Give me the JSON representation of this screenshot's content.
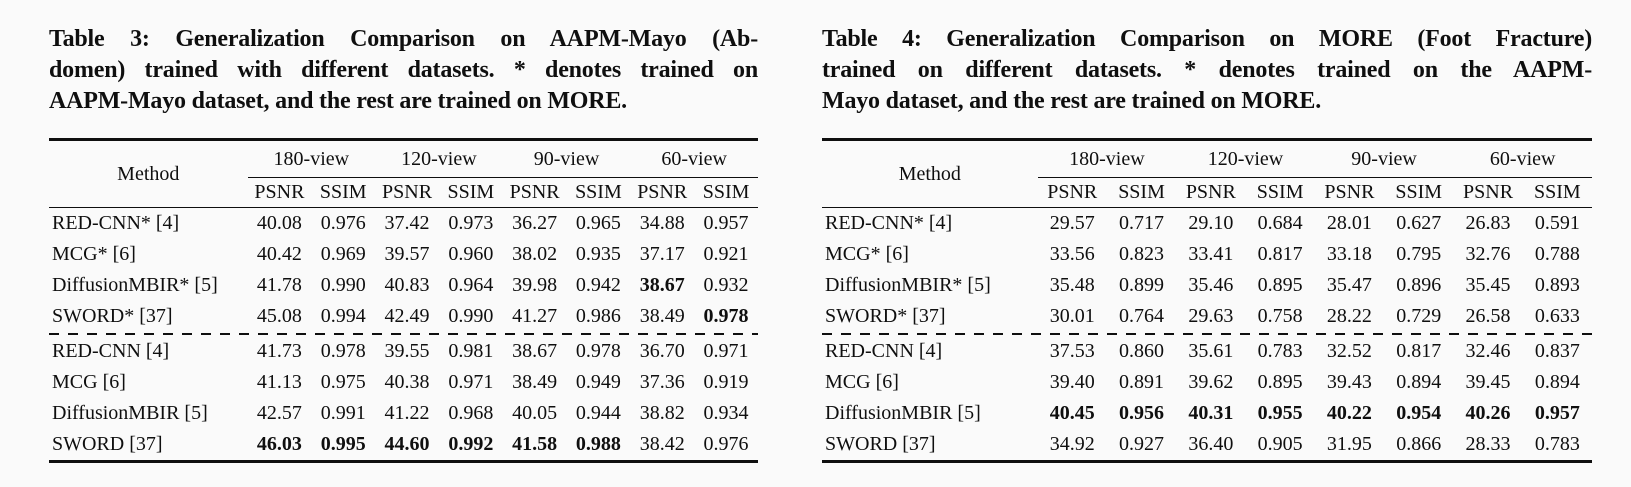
{
  "page": {
    "background": "#fafafa",
    "text_color": "#0f0f0f",
    "rule_color": "#0f0f0f"
  },
  "tables": [
    {
      "id": "table-3",
      "caption_lines": [
        "Table 3: Generalization Comparison on AAPM-Mayo (Ab-",
        "domen) trained with different datasets. * denotes trained on",
        "AAPM-Mayo dataset, and the rest are trained on MORE."
      ],
      "header": {
        "method": "Method",
        "groups": [
          "180-view",
          "120-view",
          "90-view",
          "60-view"
        ],
        "metrics": [
          "PSNR",
          "SSIM"
        ]
      },
      "rows": [
        {
          "method": "RED-CNN* [4]",
          "values": [
            "40.08",
            "0.976",
            "37.42",
            "0.973",
            "36.27",
            "0.965",
            "34.88",
            "0.957"
          ],
          "bold": []
        },
        {
          "method": "MCG* [6]",
          "values": [
            "40.42",
            "0.969",
            "39.57",
            "0.960",
            "38.02",
            "0.935",
            "37.17",
            "0.921"
          ],
          "bold": []
        },
        {
          "method": "DiffusionMBIR* [5]",
          "values": [
            "41.78",
            "0.990",
            "40.83",
            "0.964",
            "39.98",
            "0.942",
            "38.67",
            "0.932"
          ],
          "bold": [
            6
          ]
        },
        {
          "method": "SWORD* [37]",
          "values": [
            "45.08",
            "0.994",
            "42.49",
            "0.990",
            "41.27",
            "0.986",
            "38.49",
            "0.978"
          ],
          "bold": [
            7
          ],
          "dashed_after": true
        },
        {
          "method": "RED-CNN [4]",
          "values": [
            "41.73",
            "0.978",
            "39.55",
            "0.981",
            "38.67",
            "0.978",
            "36.70",
            "0.971"
          ],
          "bold": []
        },
        {
          "method": "MCG [6]",
          "values": [
            "41.13",
            "0.975",
            "40.38",
            "0.971",
            "38.49",
            "0.949",
            "37.36",
            "0.919"
          ],
          "bold": []
        },
        {
          "method": "DiffusionMBIR [5]",
          "values": [
            "42.57",
            "0.991",
            "41.22",
            "0.968",
            "40.05",
            "0.944",
            "38.82",
            "0.934"
          ],
          "bold": []
        },
        {
          "method": "SWORD [37]",
          "values": [
            "46.03",
            "0.995",
            "44.60",
            "0.992",
            "41.58",
            "0.988",
            "38.42",
            "0.976"
          ],
          "bold": [
            0,
            1,
            2,
            3,
            4,
            5
          ]
        }
      ]
    },
    {
      "id": "table-4",
      "caption_lines": [
        "Table 4: Generalization Comparison on MORE (Foot Fracture)",
        "trained on different datasets. * denotes trained on the AAPM-",
        "Mayo dataset, and the rest are trained on MORE."
      ],
      "header": {
        "method": "Method",
        "groups": [
          "180-view",
          "120-view",
          "90-view",
          "60-view"
        ],
        "metrics": [
          "PSNR",
          "SSIM"
        ]
      },
      "rows": [
        {
          "method": "RED-CNN* [4]",
          "values": [
            "29.57",
            "0.717",
            "29.10",
            "0.684",
            "28.01",
            "0.627",
            "26.83",
            "0.591"
          ],
          "bold": []
        },
        {
          "method": "MCG* [6]",
          "values": [
            "33.56",
            "0.823",
            "33.41",
            "0.817",
            "33.18",
            "0.795",
            "32.76",
            "0.788"
          ],
          "bold": []
        },
        {
          "method": "DiffusionMBIR* [5]",
          "values": [
            "35.48",
            "0.899",
            "35.46",
            "0.895",
            "35.47",
            "0.896",
            "35.45",
            "0.893"
          ],
          "bold": []
        },
        {
          "method": "SWORD* [37]",
          "values": [
            "30.01",
            "0.764",
            "29.63",
            "0.758",
            "28.22",
            "0.729",
            "26.58",
            "0.633"
          ],
          "bold": [],
          "dashed_after": true
        },
        {
          "method": "RED-CNN [4]",
          "values": [
            "37.53",
            "0.860",
            "35.61",
            "0.783",
            "32.52",
            "0.817",
            "32.46",
            "0.837"
          ],
          "bold": []
        },
        {
          "method": "MCG [6]",
          "values": [
            "39.40",
            "0.891",
            "39.62",
            "0.895",
            "39.43",
            "0.894",
            "39.45",
            "0.894"
          ],
          "bold": []
        },
        {
          "method": "DiffusionMBIR [5]",
          "values": [
            "40.45",
            "0.956",
            "40.31",
            "0.955",
            "40.22",
            "0.954",
            "40.26",
            "0.957"
          ],
          "bold": [
            0,
            1,
            2,
            3,
            4,
            5,
            6,
            7
          ]
        },
        {
          "method": "SWORD [37]",
          "values": [
            "34.92",
            "0.927",
            "36.40",
            "0.905",
            "31.95",
            "0.866",
            "28.33",
            "0.783"
          ],
          "bold": []
        }
      ]
    }
  ]
}
